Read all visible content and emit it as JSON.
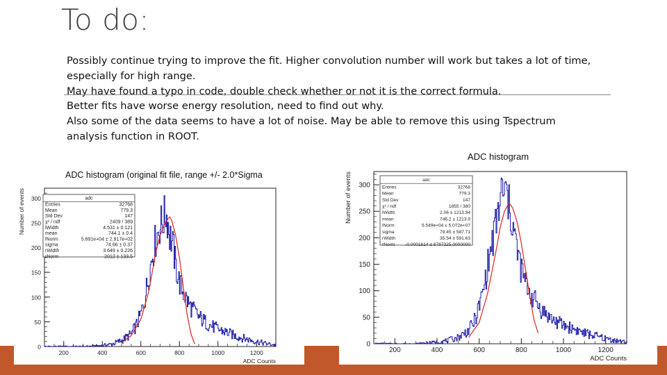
{
  "slide": {
    "title": "To do:",
    "bullets": [
      "Possibly continue trying to improve the fit. Higher convolution number will work but takes a lot of time, especially for high range.",
      "May have found a typo in code, double check whether or not it is the correct formula.",
      "Better fits have worse energy resolution, need to find out why.",
      "Also some of the data seems to have a lot of noise. May be able to remove this using Tspectrum analysis function in ROOT."
    ]
  },
  "colors": {
    "accent_band": "#c0582b",
    "histogram": "#1a1aa6",
    "fit": "#e0201b"
  },
  "chart_data": [
    {
      "type": "line",
      "title": "ADC histogram (original fit file, range +/- 2.0*Sigma",
      "xlabel": "ADC Counts",
      "ylabel": "Number of events",
      "xlim": [
        100,
        1300
      ],
      "ylim": [
        0,
        320
      ],
      "xticks": [
        "200",
        "400",
        "600",
        "800",
        "1000",
        "1200"
      ],
      "yticks": [
        "0",
        "50",
        "100",
        "150",
        "200",
        "250",
        "300"
      ],
      "stats": {
        "name": "adc",
        "rows": [
          [
            "Entries",
            "32768"
          ],
          [
            "Mean",
            "779.3"
          ],
          [
            "Std Dev",
            "147"
          ],
          [
            "χ² / ndf",
            "2409 / 389"
          ],
          [
            "lWidth",
            "4.531 ± 0.121"
          ],
          [
            "mean",
            "744.1 ± 0.4"
          ],
          [
            "lNorm",
            "5.691e+04 ± 2.917e+02"
          ],
          [
            "sigma",
            "74.66 ± 0.37"
          ],
          [
            "rWidth",
            "3.649 ± 0.226"
          ],
          [
            "rNorm",
            "2012 ± 133.5"
          ]
        ]
      },
      "series": [
        {
          "role": "histogram",
          "x": [
            100,
            200,
            300,
            400,
            450,
            500,
            550,
            580,
            600,
            620,
            640,
            660,
            680,
            700,
            710,
            720,
            730,
            740,
            750,
            760,
            770,
            780,
            800,
            820,
            850,
            900,
            950,
            1000,
            1050,
            1100,
            1150,
            1200,
            1250,
            1300
          ],
          "y": [
            0,
            0,
            0,
            2,
            5,
            12,
            25,
            45,
            65,
            95,
            140,
            185,
            220,
            245,
            250,
            260,
            270,
            255,
            225,
            215,
            195,
            165,
            130,
            110,
            85,
            60,
            45,
            35,
            28,
            20,
            15,
            10,
            6,
            3
          ]
        },
        {
          "role": "fit",
          "x": [
            500,
            550,
            600,
            640,
            680,
            700,
            720,
            740,
            750,
            760,
            780,
            800,
            820,
            840,
            860,
            880
          ],
          "y": [
            8,
            22,
            55,
            110,
            195,
            225,
            245,
            258,
            262,
            255,
            225,
            180,
            120,
            65,
            25,
            5
          ]
        }
      ]
    },
    {
      "type": "line",
      "title": "ADC histogram",
      "xlabel": "ADC Counts",
      "ylabel": "Number of events",
      "xlim": [
        100,
        1300
      ],
      "ylim": [
        0,
        325
      ],
      "xticks": [
        "200",
        "400",
        "600",
        "800",
        "1000",
        "1200"
      ],
      "yticks": [
        "0",
        "50",
        "100",
        "150",
        "200",
        "250",
        "300"
      ],
      "stats": {
        "name": "adc",
        "rows": [
          [
            "Entries",
            "32768"
          ],
          [
            "Mean",
            "779.3"
          ],
          [
            "Std Dev",
            "147"
          ],
          [
            "χ² / ndf",
            "1855 / 380"
          ],
          [
            "lWidth",
            "2.06 ± 1213.94"
          ],
          [
            "mean",
            "746.2 ± 1213.9"
          ],
          [
            "lNorm",
            "5.549e+04 ± 5.072e+07"
          ],
          [
            "sigma",
            "79.45 ± 587.71"
          ],
          [
            "rWidth",
            "35.54 ± 591.63"
          ],
          [
            "rNorm",
            "-0.0001614 ± 6787325.0000000"
          ]
        ]
      },
      "series": [
        {
          "role": "histogram",
          "x": [
            100,
            200,
            300,
            400,
            450,
            500,
            550,
            580,
            600,
            620,
            640,
            660,
            680,
            700,
            710,
            720,
            730,
            740,
            750,
            760,
            770,
            780,
            800,
            820,
            850,
            900,
            950,
            1000,
            1050,
            1100,
            1150,
            1200,
            1250,
            1300
          ],
          "y": [
            0,
            0,
            0,
            3,
            6,
            12,
            25,
            45,
            70,
            100,
            145,
            185,
            225,
            270,
            290,
            280,
            285,
            260,
            245,
            225,
            200,
            175,
            140,
            115,
            90,
            62,
            45,
            35,
            28,
            20,
            15,
            10,
            6,
            3
          ]
        },
        {
          "role": "fit",
          "x": [
            550,
            600,
            640,
            680,
            700,
            720,
            740,
            750,
            760,
            780,
            800,
            820,
            840,
            860,
            880
          ],
          "y": [
            12,
            40,
            95,
            175,
            220,
            250,
            265,
            262,
            255,
            230,
            190,
            140,
            90,
            45,
            20
          ]
        }
      ]
    }
  ]
}
